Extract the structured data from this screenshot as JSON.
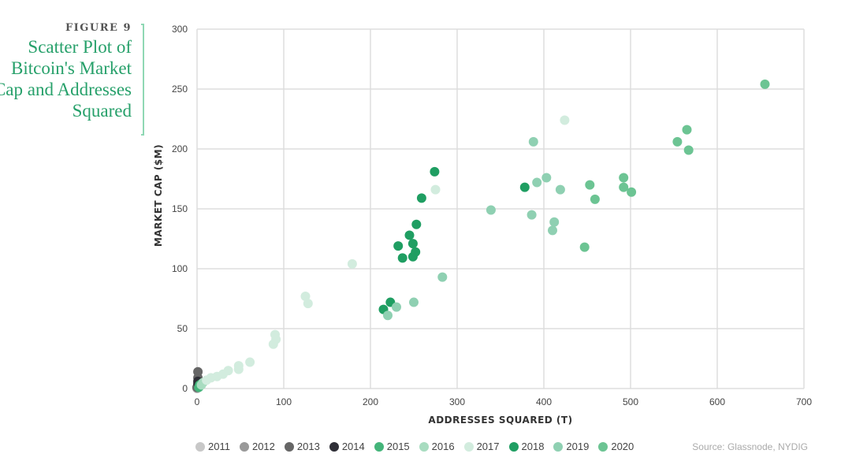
{
  "figure_label": "FIGURE 9",
  "chart_data": {
    "type": "scatter",
    "title": "Scatter Plot of Bitcoin's Market Cap and Addresses Squared",
    "xlabel": "ADDRESSES SQUARED (T)",
    "ylabel": "MARKET CAP ($M)",
    "xlim": [
      0,
      700
    ],
    "ylim": [
      0,
      300
    ],
    "xticks": [
      0,
      100,
      200,
      300,
      400,
      500,
      600,
      700
    ],
    "yticks": [
      0,
      50,
      100,
      150,
      200,
      250,
      300
    ],
    "grid": true,
    "legend_position": "bottom",
    "series": [
      {
        "name": "2011",
        "color": "#c8c8c8",
        "points": [
          [
            0,
            0
          ]
        ]
      },
      {
        "name": "2012",
        "color": "#999999",
        "points": [
          [
            0,
            0.5
          ]
        ]
      },
      {
        "name": "2013",
        "color": "#666666",
        "points": [
          [
            1,
            14
          ],
          [
            1,
            9
          ],
          [
            0,
            1
          ]
        ]
      },
      {
        "name": "2014",
        "color": "#2e2e36",
        "points": [
          [
            1,
            6
          ],
          [
            1,
            4
          ]
        ]
      },
      {
        "name": "2015",
        "color": "#44b57a",
        "points": [
          [
            2,
            1
          ],
          [
            3,
            3
          ],
          [
            5,
            4
          ]
        ]
      },
      {
        "name": "2016",
        "color": "#a8dcc0",
        "points": [
          [
            5,
            3
          ],
          [
            7,
            5
          ]
        ]
      },
      {
        "name": "2017",
        "color": "#d2ecde",
        "points": [
          [
            11,
            7
          ],
          [
            16,
            9
          ],
          [
            23,
            10
          ],
          [
            30,
            12
          ],
          [
            36,
            15
          ],
          [
            48,
            16
          ],
          [
            48,
            19
          ],
          [
            61,
            22
          ],
          [
            88,
            37
          ],
          [
            91,
            41
          ],
          [
            90,
            45
          ],
          [
            128,
            71
          ],
          [
            125,
            77
          ],
          [
            179,
            104
          ],
          [
            275,
            166
          ],
          [
            424,
            224
          ]
        ]
      },
      {
        "name": "2018",
        "color": "#1f9e62",
        "points": [
          [
            215,
            66
          ],
          [
            223,
            72
          ],
          [
            237,
            109
          ],
          [
            249,
            110
          ],
          [
            252,
            114
          ],
          [
            232,
            119
          ],
          [
            249,
            121
          ],
          [
            245,
            128
          ],
          [
            253,
            137
          ],
          [
            259,
            159
          ],
          [
            274,
            181
          ],
          [
            378,
            168
          ]
        ]
      },
      {
        "name": "2019",
        "color": "#8fd0b2",
        "points": [
          [
            220,
            61
          ],
          [
            230,
            68
          ],
          [
            250,
            72
          ],
          [
            283,
            93
          ],
          [
            339,
            149
          ],
          [
            386,
            145
          ],
          [
            410,
            132
          ],
          [
            412,
            139
          ],
          [
            392,
            172
          ],
          [
            403,
            176
          ],
          [
            419,
            166
          ],
          [
            388,
            206
          ]
        ]
      },
      {
        "name": "2020",
        "color": "#6cc493",
        "points": [
          [
            447,
            118
          ],
          [
            453,
            170
          ],
          [
            459,
            158
          ],
          [
            492,
            176
          ],
          [
            492,
            168
          ],
          [
            501,
            164
          ],
          [
            554,
            206
          ],
          [
            565,
            216
          ],
          [
            567,
            199
          ],
          [
            655,
            254
          ]
        ]
      }
    ]
  },
  "source": "Source: Glassnode, NYDIG"
}
